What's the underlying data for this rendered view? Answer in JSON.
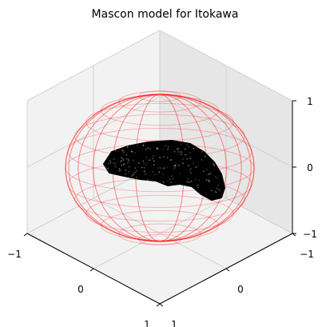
{
  "chart_data": {
    "type": "scatter",
    "projection": "3d",
    "title": "Mascon model for Itokawa",
    "xlim": [
      -1,
      1
    ],
    "ylim": [
      -1,
      1
    ],
    "zlim": [
      -1,
      1
    ],
    "x_ticks": [
      -1,
      0,
      1
    ],
    "y_ticks": [
      -1,
      0,
      1
    ],
    "z_ticks": [
      -1,
      0,
      1
    ],
    "x_tick_labels": [
      "−1",
      "0",
      "1"
    ],
    "y_tick_labels": [
      "−1",
      "0",
      "1"
    ],
    "z_tick_labels": [
      "−1",
      "0",
      "1"
    ],
    "grid": true,
    "series": [
      {
        "kind": "wireframe-sphere",
        "center": [
          0,
          0,
          0
        ],
        "radius": 1.0,
        "meridians": 24,
        "parallels": 14,
        "color": "#ff0000",
        "alpha": 0.25
      },
      {
        "kind": "point-cloud",
        "shape": "elongated asteroid body",
        "extent_x": [
          -0.95,
          0.85
        ],
        "extent_y": [
          -0.3,
          0.3
        ],
        "extent_z": [
          -0.35,
          0.3
        ],
        "color": "#000000",
        "highlight_color": "#cccccc"
      }
    ]
  },
  "colors": {
    "pane": "#f2f2f2",
    "pane_dark": "#e6e6e6",
    "grid": "#cfcfcf",
    "axis": "#000000"
  }
}
